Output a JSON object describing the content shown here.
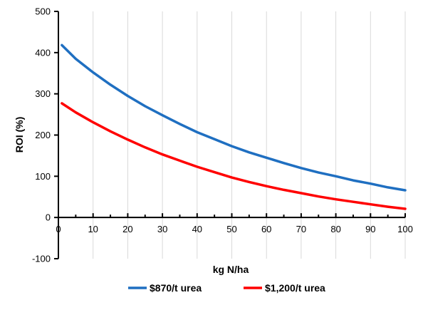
{
  "chart_data": {
    "type": "line",
    "title": "",
    "xlabel": "kg N/ha",
    "ylabel": "ROI (%)",
    "xlim": [
      0,
      100
    ],
    "ylim": [
      -100,
      500
    ],
    "xticks": [
      0,
      10,
      20,
      30,
      40,
      50,
      60,
      70,
      80,
      90,
      100
    ],
    "yticks": [
      -100,
      0,
      100,
      200,
      300,
      400,
      500
    ],
    "x_tick_labels": [
      "0",
      "10",
      "20",
      "30",
      "40",
      "50",
      "60",
      "70",
      "80",
      "90",
      "100"
    ],
    "y_tick_labels": [
      "-100",
      "0",
      "100",
      "200",
      "300",
      "400",
      "500"
    ],
    "grid": "vertical",
    "legend_position": "bottom",
    "series": [
      {
        "name": "$870/t urea",
        "color": "#1f6fc1",
        "x": [
          1,
          5,
          10,
          15,
          20,
          25,
          30,
          35,
          40,
          45,
          50,
          55,
          60,
          65,
          70,
          75,
          80,
          85,
          90,
          95,
          100
        ],
        "y": [
          418,
          385,
          352,
          322,
          295,
          270,
          248,
          227,
          207,
          190,
          173,
          158,
          145,
          132,
          120,
          109,
          100,
          90,
          82,
          73,
          66
        ]
      },
      {
        "name": "$1,200/t urea",
        "color": "#ff0000",
        "x": [
          1,
          5,
          10,
          15,
          20,
          25,
          30,
          35,
          40,
          45,
          50,
          55,
          60,
          65,
          70,
          75,
          80,
          85,
          90,
          95,
          100
        ],
        "y": [
          277,
          255,
          231,
          209,
          189,
          170,
          153,
          138,
          123,
          110,
          97,
          86,
          76,
          67,
          59,
          51,
          44,
          38,
          32,
          26,
          21
        ]
      }
    ]
  }
}
